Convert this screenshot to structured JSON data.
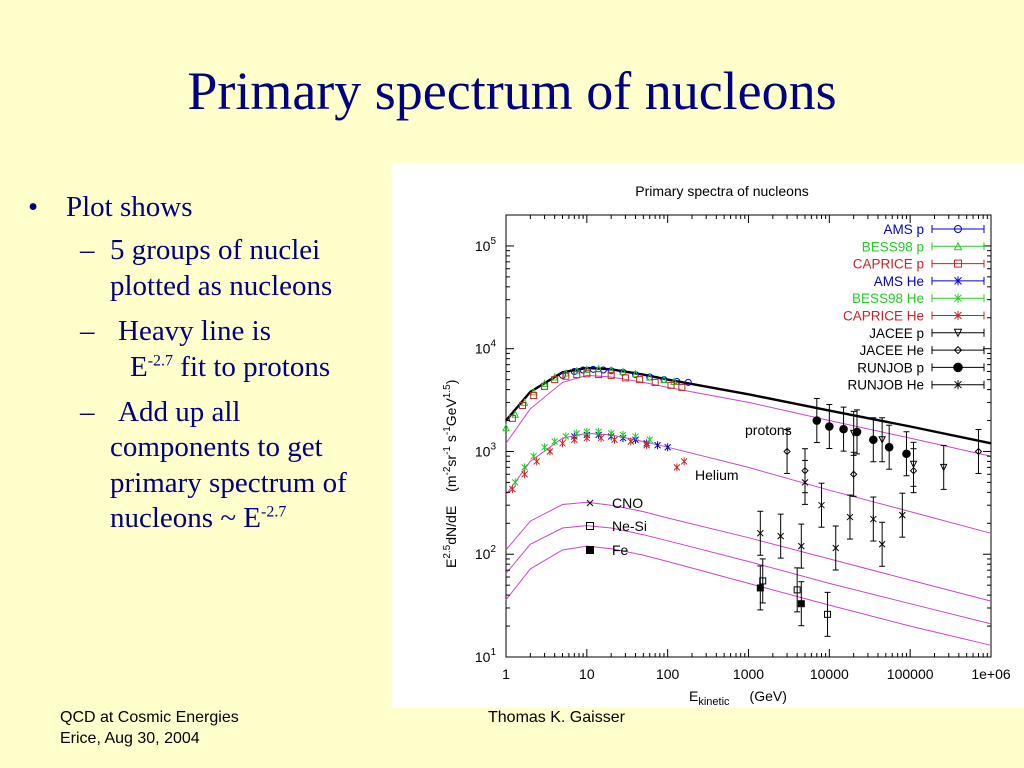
{
  "slide": {
    "title": "Primary spectrum of nucleons",
    "bullets": {
      "main": "Plot shows",
      "item1_line1": "5 groups of nuclei",
      "item1_line2": "plotted as nucleons",
      "item2_line1": "Heavy line is",
      "item2_line2_pre": "E",
      "item2_line2_sup": "-2.7",
      "item2_line2_post": " fit to protons",
      "item3_line1": "Add up all",
      "item3_line2": "components to get",
      "item3_line3": "primary spectrum of",
      "item3_line4_pre": "nucleons  ~  E",
      "item3_line4_sup": "-2.7"
    },
    "footer": {
      "left_line1": "QCD at Cosmic Energies",
      "left_line2": "Erice, Aug 30, 2004",
      "center": "Thomas K. Gaisser"
    }
  },
  "chart_data": {
    "type": "scatter",
    "title": "Primary spectra of nucleons",
    "xlabel_main": "E",
    "xlabel_sub": "kinetic",
    "xlabel_unit": "(GeV)",
    "ylabel_text": "E^2.5 dN/dE  (m^-2 sr^-1 s^-1 GeV^1.5)",
    "x_scale": "log",
    "y_scale": "log",
    "xlim": [
      1,
      1000000
    ],
    "ylim": [
      10,
      200000
    ],
    "x_ticks": [
      "1",
      "10",
      "100",
      "1000",
      "10000",
      "100000",
      "1e+06"
    ],
    "y_ticks": [
      {
        "base": "10",
        "exp": "1"
      },
      {
        "base": "10",
        "exp": "2"
      },
      {
        "base": "10",
        "exp": "3"
      },
      {
        "base": "10",
        "exp": "4"
      },
      {
        "base": "10",
        "exp": "5"
      }
    ],
    "legend_position": "top-right",
    "legend": [
      {
        "name": "AMS p",
        "color": "#0000cc",
        "marker": "circle"
      },
      {
        "name": "BESS98 p",
        "color": "#22cc22",
        "marker": "triangle"
      },
      {
        "name": "CAPRICE p",
        "color": "#cc2222",
        "marker": "square"
      },
      {
        "name": "AMS He",
        "color": "#0000cc",
        "marker": "star"
      },
      {
        "name": "BESS98 He",
        "color": "#22cc22",
        "marker": "star"
      },
      {
        "name": "CAPRICE He",
        "color": "#cc2222",
        "marker": "star"
      },
      {
        "name": "JACEE p",
        "color": "#000000",
        "marker": "triangle-down"
      },
      {
        "name": "JACEE He",
        "color": "#000000",
        "marker": "diamond"
      },
      {
        "name": "RUNJOB p",
        "color": "#000000",
        "marker": "filled-circle"
      },
      {
        "name": "RUNJOB He",
        "color": "#000000",
        "marker": "star"
      }
    ],
    "annotations": {
      "protons": "protons",
      "helium": "Helium",
      "cno": "CNO",
      "nesi": "Ne-Si",
      "fe": "Fe"
    },
    "heavy_line": {
      "x": [
        1,
        2,
        5,
        10,
        20,
        50,
        100,
        1000,
        10000,
        100000,
        1000000
      ],
      "y": [
        2000,
        3800,
        5900,
        6500,
        6300,
        5600,
        5000,
        3600,
        2500,
        1750,
        1200
      ]
    },
    "model_curves": [
      {
        "x": [
          1,
          2,
          5,
          10,
          20,
          50,
          100,
          1000,
          10000,
          100000,
          1000000
        ],
        "y": [
          1200,
          2600,
          4700,
          5500,
          5300,
          4700,
          4200,
          3000,
          2000,
          1350,
          900
        ]
      },
      {
        "x": [
          1,
          2,
          5,
          10,
          20,
          50,
          100,
          1000,
          10000,
          100000,
          1000000
        ],
        "y": [
          380,
          800,
          1350,
          1500,
          1450,
          1250,
          1100,
          700,
          420,
          260,
          160
        ]
      },
      {
        "x": [
          1,
          2,
          5,
          10,
          20,
          50,
          100,
          1000,
          10000,
          100000,
          1000000
        ],
        "y": [
          110,
          210,
          305,
          320,
          300,
          260,
          225,
          145,
          90,
          56,
          35
        ]
      },
      {
        "x": [
          1,
          2,
          5,
          10,
          20,
          50,
          100,
          1000,
          10000,
          100000,
          1000000
        ],
        "y": [
          65,
          125,
          180,
          190,
          180,
          155,
          135,
          85,
          52,
          33,
          21
        ]
      },
      {
        "x": [
          1,
          2,
          5,
          10,
          20,
          50,
          100,
          1000,
          10000,
          100000,
          1000000
        ],
        "y": [
          36,
          72,
          110,
          120,
          113,
          98,
          85,
          52,
          32,
          20,
          13
        ]
      }
    ],
    "series": [
      {
        "name": "AMS p",
        "color": "#0000cc",
        "marker": "circle",
        "x": [
          5,
          7,
          9,
          12,
          16,
          20,
          28,
          40,
          60,
          90,
          130,
          180
        ],
        "y": [
          5500,
          6000,
          6200,
          6300,
          6200,
          6100,
          5900,
          5600,
          5300,
          5000,
          4800,
          4700
        ]
      },
      {
        "name": "BESS98 p",
        "color": "#22cc22",
        "marker": "triangle",
        "x": [
          1,
          1.3,
          1.7,
          2.2,
          3,
          4,
          5.5,
          7.5,
          10,
          14,
          20,
          28,
          40,
          60,
          90,
          120
        ],
        "y": [
          1700,
          2300,
          3000,
          3800,
          4600,
          5300,
          5800,
          6100,
          6300,
          6400,
          6200,
          6000,
          5700,
          5300,
          5000,
          4800
        ]
      },
      {
        "name": "CAPRICE p",
        "color": "#cc2222",
        "marker": "square",
        "x": [
          1.2,
          1.6,
          2.2,
          3,
          4,
          5.5,
          7.5,
          10,
          14,
          20,
          30,
          45,
          70,
          110,
          150
        ],
        "y": [
          2100,
          2800,
          3500,
          4300,
          5000,
          5400,
          5600,
          5700,
          5600,
          5500,
          5200,
          5000,
          4700,
          4400,
          4200
        ]
      },
      {
        "name": "AMS He",
        "color": "#0000cc",
        "marker": "star",
        "x": [
          7,
          10,
          14,
          20,
          28,
          40,
          55,
          75,
          100
        ],
        "y": [
          1400,
          1450,
          1450,
          1400,
          1350,
          1300,
          1200,
          1150,
          1100
        ]
      },
      {
        "name": "BESS98 He",
        "color": "#22cc22",
        "marker": "star",
        "x": [
          1.3,
          1.7,
          2.2,
          3,
          4,
          5.5,
          7.5,
          10,
          14,
          20,
          28,
          40,
          60
        ],
        "y": [
          500,
          700,
          900,
          1100,
          1250,
          1400,
          1500,
          1550,
          1550,
          1500,
          1450,
          1400,
          1300
        ]
      },
      {
        "name": "CAPRICE He",
        "color": "#cc2222",
        "marker": "star",
        "x": [
          1.2,
          1.7,
          2.4,
          3.5,
          5,
          7,
          10,
          15,
          22,
          35,
          55,
          130,
          160
        ],
        "y": [
          430,
          600,
          800,
          1000,
          1200,
          1300,
          1350,
          1350,
          1300,
          1250,
          1150,
          700,
          800
        ]
      },
      {
        "name": "JACEE p",
        "color": "#000000",
        "marker": "triangle-down",
        "x": [
          20000,
          45000,
          110000,
          260000
        ],
        "y": [
          1500,
          1300,
          750,
          700
        ]
      },
      {
        "name": "JACEE He",
        "color": "#000000",
        "marker": "diamond",
        "x": [
          3000,
          5000,
          20000,
          110000,
          700000
        ],
        "y": [
          1000,
          650,
          600,
          650,
          1000
        ]
      },
      {
        "name": "RUNJOB p",
        "color": "#000000",
        "marker": "filled-circle",
        "x": [
          7000,
          10000,
          15000,
          22000,
          35000,
          55000,
          90000
        ],
        "y": [
          2000,
          1750,
          1650,
          1550,
          1300,
          1100,
          950
        ]
      },
      {
        "name": "RUNJOB He",
        "color": "#000000",
        "marker": "star",
        "x": [
          5000,
          8000,
          18000,
          35000,
          80000
        ],
        "y": [
          500,
          300,
          230,
          220,
          240
        ]
      },
      {
        "name": "CNO",
        "color": "#000000",
        "marker": "x",
        "x": [
          1400,
          2500,
          4500,
          12000,
          45000
        ],
        "y": [
          160,
          150,
          120,
          115,
          125
        ]
      },
      {
        "name": "Ne-Si",
        "color": "#000000",
        "marker": "open-square",
        "x": [
          1500,
          4000,
          9500
        ],
        "y": [
          55,
          45,
          26
        ]
      },
      {
        "name": "Fe",
        "color": "#000000",
        "marker": "filled-square",
        "x": [
          1400,
          4500
        ],
        "y": [
          47,
          33
        ]
      }
    ]
  }
}
